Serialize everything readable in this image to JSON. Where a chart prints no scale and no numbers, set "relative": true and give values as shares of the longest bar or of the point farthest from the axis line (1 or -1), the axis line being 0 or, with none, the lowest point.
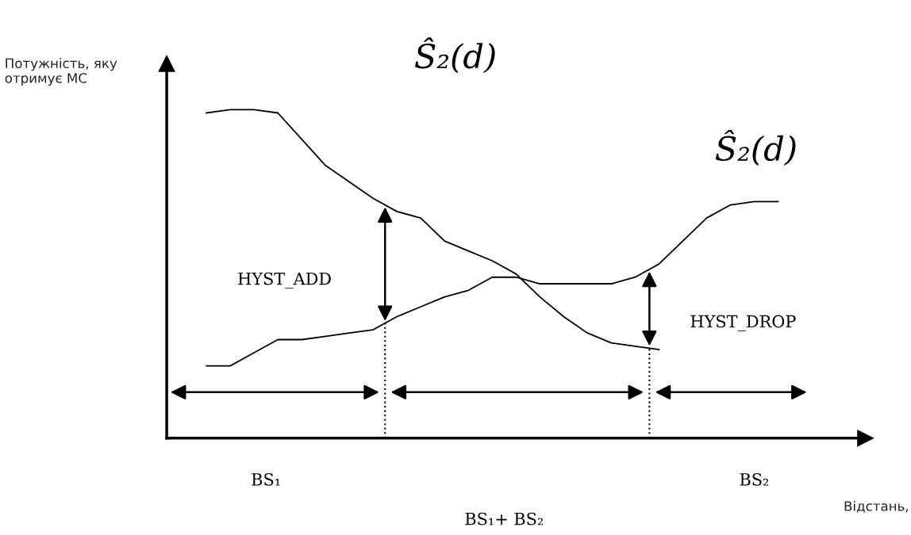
{
  "chart_data": {
    "type": "line",
    "relative": true,
    "categories": [
      null,
      null,
      null,
      null,
      null,
      null,
      null,
      null,
      null,
      null,
      null,
      null,
      null,
      null,
      null,
      null,
      null,
      null,
      null,
      null,
      null,
      null,
      null,
      null,
      null
    ],
    "series": [
      {
        "color": "#000000",
        "values": [
          0.99,
          1.0,
          1.0,
          0.99,
          0.91,
          0.83,
          0.78,
          0.73,
          0.69,
          0.67,
          0.6,
          0.57,
          0.54,
          0.5,
          0.43,
          0.37,
          0.32,
          0.29,
          0.28,
          0.27,
          null,
          null,
          null,
          null,
          null
        ]
      },
      {
        "name": "Ŝ₂(d)",
        "color": "#000000",
        "values": [
          0.22,
          0.22,
          0.26,
          0.3,
          0.3,
          0.31,
          0.32,
          0.33,
          0.37,
          0.4,
          0.43,
          0.45,
          0.49,
          0.49,
          0.47,
          0.47,
          0.47,
          0.47,
          0.49,
          0.53,
          0.6,
          0.67,
          0.71,
          0.72,
          0.72
        ]
      }
    ],
    "annotations": [
      "HYST_ADD",
      "HYST_DROP",
      "BS₁",
      "BS₂",
      "BS₁+ BS₂",
      "Ŝ₂(d)",
      "Потужність, яку\nотримує МС",
      "Відстань,"
    ],
    "legend": false,
    "marker": "none",
    "line_style": "solid"
  }
}
